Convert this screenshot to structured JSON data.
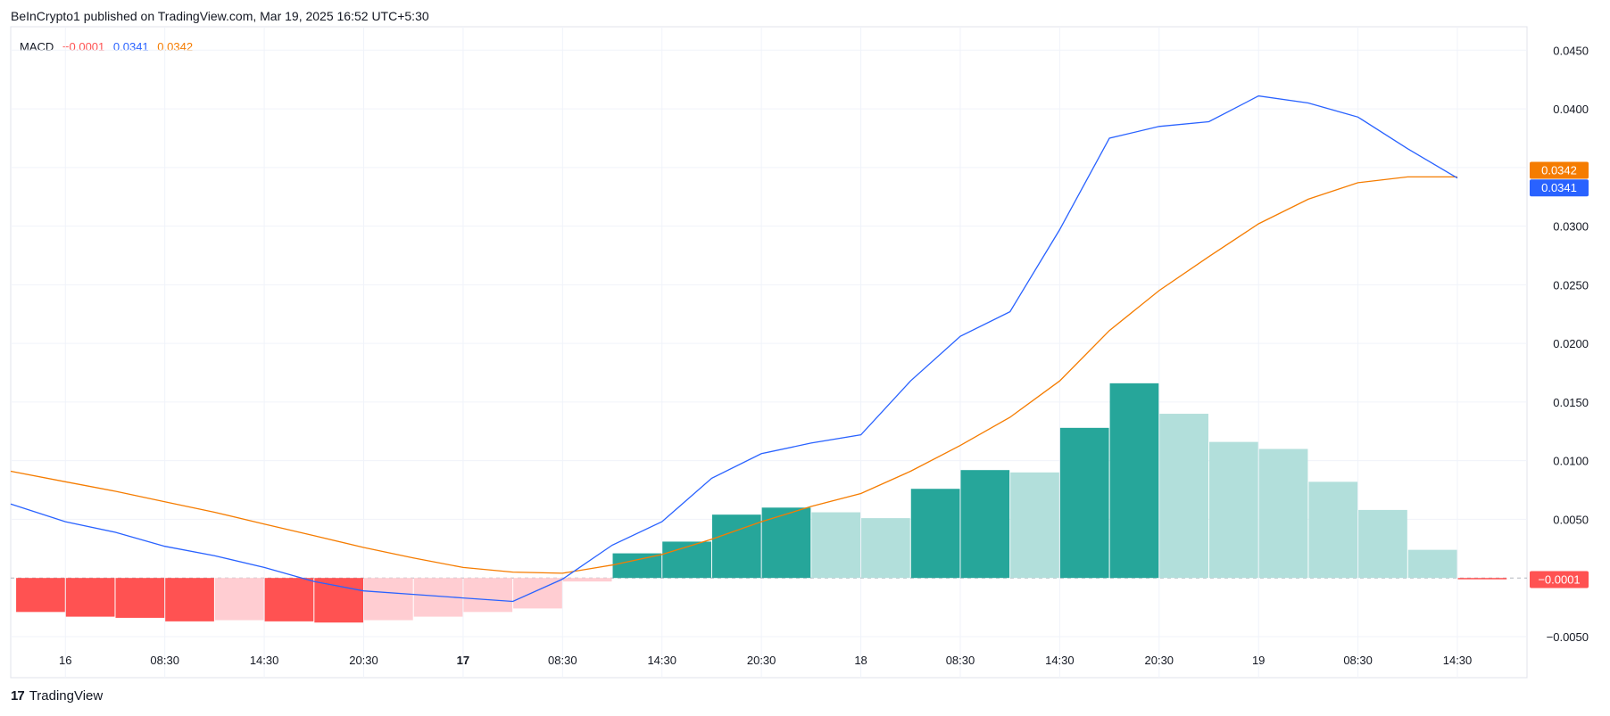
{
  "header": {
    "attribution": "BeInCrypto1 published on TradingView.com, Mar 19, 2025 16:52 UTC+5:30"
  },
  "legend": {
    "name": "MACD",
    "hist": "−0.0001",
    "macd": "0.0341",
    "signal": "0.0342"
  },
  "footer": {
    "logo": "17",
    "brand": "TradingView"
  },
  "colors": {
    "macd": "#2962ff",
    "signal": "#f57c00",
    "hist_up_strong": "#26a69a",
    "hist_up_weak": "#b2dfdb",
    "hist_down_strong": "#ff5252",
    "hist_down_weak": "#ffcdd2",
    "grid": "#f0f3fa",
    "axis_text": "#131722"
  },
  "chart_data": {
    "type": "macd",
    "y_axis": {
      "range": [
        -0.0085,
        0.047
      ],
      "ticks": [
        -0.005,
        0.005,
        0.01,
        0.015,
        0.02,
        0.025,
        0.03,
        0.035,
        0.04,
        0.045
      ],
      "tick_labels": [
        "−0.0050",
        "0.0050",
        "0.0100",
        "0.0150",
        "0.0200",
        "0.0250",
        "0.0300",
        "0.0350",
        "0.0400",
        "0.0450"
      ],
      "side": "right"
    },
    "x_axis": {
      "range": [
        -0.6,
        29.9
      ],
      "ticks": [
        {
          "x": 0.5,
          "label": "16",
          "bold": false
        },
        {
          "x": 2.5,
          "label": "08:30",
          "bold": false
        },
        {
          "x": 4.5,
          "label": "14:30",
          "bold": false
        },
        {
          "x": 6.5,
          "label": "20:30",
          "bold": false
        },
        {
          "x": 8.5,
          "label": "17",
          "bold": true
        },
        {
          "x": 10.5,
          "label": "08:30",
          "bold": false
        },
        {
          "x": 12.5,
          "label": "14:30",
          "bold": false
        },
        {
          "x": 14.5,
          "label": "20:30",
          "bold": false
        },
        {
          "x": 16.5,
          "label": "18",
          "bold": false
        },
        {
          "x": 18.5,
          "label": "08:30",
          "bold": false
        },
        {
          "x": 20.5,
          "label": "14:30",
          "bold": false
        },
        {
          "x": 22.5,
          "label": "20:30",
          "bold": false
        },
        {
          "x": 24.5,
          "label": "19",
          "bold": false
        },
        {
          "x": 26.5,
          "label": "08:30",
          "bold": false
        },
        {
          "x": 28.5,
          "label": "14:30",
          "bold": false
        }
      ]
    },
    "histogram": [
      {
        "v": -0.0029,
        "c": "down_strong"
      },
      {
        "v": -0.0033,
        "c": "down_strong"
      },
      {
        "v": -0.0034,
        "c": "down_strong"
      },
      {
        "v": -0.0037,
        "c": "down_strong"
      },
      {
        "v": -0.0036,
        "c": "down_weak"
      },
      {
        "v": -0.0037,
        "c": "down_strong"
      },
      {
        "v": -0.0038,
        "c": "down_strong"
      },
      {
        "v": -0.0036,
        "c": "down_weak"
      },
      {
        "v": -0.0033,
        "c": "down_weak"
      },
      {
        "v": -0.0029,
        "c": "down_weak"
      },
      {
        "v": -0.0026,
        "c": "down_weak"
      },
      {
        "v": -0.0003,
        "c": "down_weak"
      },
      {
        "v": 0.0021,
        "c": "up_strong"
      },
      {
        "v": 0.0031,
        "c": "up_strong"
      },
      {
        "v": 0.0054,
        "c": "up_strong"
      },
      {
        "v": 0.006,
        "c": "up_strong"
      },
      {
        "v": 0.0056,
        "c": "up_weak"
      },
      {
        "v": 0.0051,
        "c": "up_weak"
      },
      {
        "v": 0.0076,
        "c": "up_strong"
      },
      {
        "v": 0.0092,
        "c": "up_strong"
      },
      {
        "v": 0.009,
        "c": "up_weak"
      },
      {
        "v": 0.0128,
        "c": "up_strong"
      },
      {
        "v": 0.0166,
        "c": "up_strong"
      },
      {
        "v": 0.014,
        "c": "up_weak"
      },
      {
        "v": 0.0116,
        "c": "up_weak"
      },
      {
        "v": 0.011,
        "c": "up_weak"
      },
      {
        "v": 0.0082,
        "c": "up_weak"
      },
      {
        "v": 0.0058,
        "c": "up_weak"
      },
      {
        "v": 0.0024,
        "c": "up_weak"
      },
      {
        "v": -0.0001,
        "c": "down_strong"
      }
    ],
    "macd_line": [
      {
        "x": -0.6,
        "y": 0.0063
      },
      {
        "x": 0.5,
        "y": 0.0048
      },
      {
        "x": 1.5,
        "y": 0.0039
      },
      {
        "x": 2.5,
        "y": 0.0027
      },
      {
        "x": 3.5,
        "y": 0.0019
      },
      {
        "x": 4.5,
        "y": 0.0009
      },
      {
        "x": 5.5,
        "y": -0.0003
      },
      {
        "x": 6.5,
        "y": -0.0011
      },
      {
        "x": 7.5,
        "y": -0.0014
      },
      {
        "x": 8.5,
        "y": -0.0017
      },
      {
        "x": 9.5,
        "y": -0.002
      },
      {
        "x": 10.5,
        "y": -0.0001
      },
      {
        "x": 11.5,
        "y": 0.0028
      },
      {
        "x": 12.5,
        "y": 0.0048
      },
      {
        "x": 13.5,
        "y": 0.0085
      },
      {
        "x": 14.5,
        "y": 0.0106
      },
      {
        "x": 15.5,
        "y": 0.0115
      },
      {
        "x": 16.5,
        "y": 0.0122
      },
      {
        "x": 17.5,
        "y": 0.0168
      },
      {
        "x": 18.5,
        "y": 0.0206
      },
      {
        "x": 19.5,
        "y": 0.0227
      },
      {
        "x": 20.5,
        "y": 0.0297
      },
      {
        "x": 21.5,
        "y": 0.0375
      },
      {
        "x": 22.5,
        "y": 0.0385
      },
      {
        "x": 23.5,
        "y": 0.0389
      },
      {
        "x": 24.5,
        "y": 0.0411
      },
      {
        "x": 25.5,
        "y": 0.0405
      },
      {
        "x": 26.5,
        "y": 0.0393
      },
      {
        "x": 27.5,
        "y": 0.0366
      },
      {
        "x": 28.5,
        "y": 0.0341
      }
    ],
    "signal_line": [
      {
        "x": -0.6,
        "y": 0.0091
      },
      {
        "x": 0.5,
        "y": 0.0082
      },
      {
        "x": 1.5,
        "y": 0.0074
      },
      {
        "x": 2.5,
        "y": 0.0065
      },
      {
        "x": 3.5,
        "y": 0.0056
      },
      {
        "x": 4.5,
        "y": 0.0046
      },
      {
        "x": 5.5,
        "y": 0.0036
      },
      {
        "x": 6.5,
        "y": 0.0026
      },
      {
        "x": 7.5,
        "y": 0.0017
      },
      {
        "x": 8.5,
        "y": 0.0009
      },
      {
        "x": 9.5,
        "y": 0.0005
      },
      {
        "x": 10.5,
        "y": 0.0004
      },
      {
        "x": 11.5,
        "y": 0.0011
      },
      {
        "x": 12.5,
        "y": 0.002
      },
      {
        "x": 13.5,
        "y": 0.0033
      },
      {
        "x": 14.5,
        "y": 0.0048
      },
      {
        "x": 15.5,
        "y": 0.0061
      },
      {
        "x": 16.5,
        "y": 0.0072
      },
      {
        "x": 17.5,
        "y": 0.0091
      },
      {
        "x": 18.5,
        "y": 0.0113
      },
      {
        "x": 19.5,
        "y": 0.0137
      },
      {
        "x": 20.5,
        "y": 0.0168
      },
      {
        "x": 21.5,
        "y": 0.0211
      },
      {
        "x": 22.5,
        "y": 0.0245
      },
      {
        "x": 23.5,
        "y": 0.0274
      },
      {
        "x": 24.5,
        "y": 0.0302
      },
      {
        "x": 25.5,
        "y": 0.0323
      },
      {
        "x": 26.5,
        "y": 0.0337
      },
      {
        "x": 27.5,
        "y": 0.0342
      },
      {
        "x": 28.5,
        "y": 0.0342
      }
    ],
    "price_labels": [
      {
        "label": "0.0342",
        "value": 0.0348,
        "series": "signal"
      },
      {
        "label": "0.0341",
        "value": 0.0333,
        "series": "macd"
      },
      {
        "label": "−0.0001",
        "value": -0.0001,
        "series": "hist"
      }
    ],
    "grid": true
  }
}
